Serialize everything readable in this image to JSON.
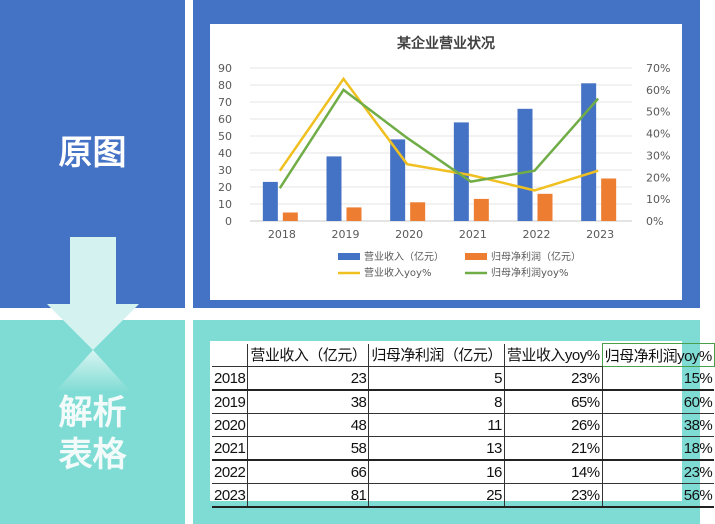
{
  "panels": {
    "original_label": "原图",
    "parsed_label": "解析\n表格"
  },
  "colors": {
    "top_panel": "#4472c4",
    "bottom_panel": "#7fdcd4",
    "revenue_bar": "#4472c4",
    "profit_bar": "#ed7d31",
    "revenue_yoy_line": "#f0c020",
    "profit_yoy_line": "#70ad47"
  },
  "chart_data": {
    "type": "bar",
    "title": "某企业营业状况",
    "categories": [
      "2018",
      "2019",
      "2020",
      "2021",
      "2022",
      "2023"
    ],
    "series": [
      {
        "name": "营业收入（亿元）",
        "type": "bar",
        "axis": "left",
        "values": [
          23,
          38,
          48,
          58,
          66,
          81
        ]
      },
      {
        "name": "归母净利润（亿元）",
        "type": "bar",
        "axis": "left",
        "values": [
          5,
          8,
          11,
          13,
          16,
          25
        ]
      },
      {
        "name": "营业收入yoy%",
        "type": "line",
        "axis": "right",
        "values": [
          0.23,
          0.65,
          0.26,
          0.21,
          0.14,
          0.23
        ]
      },
      {
        "name": "归母净利润yoy%",
        "type": "line",
        "axis": "right",
        "values": [
          0.15,
          0.6,
          0.38,
          0.18,
          0.23,
          0.56
        ]
      }
    ],
    "left_axis": {
      "ticks": [
        "0",
        "10",
        "20",
        "30",
        "40",
        "50",
        "60",
        "70",
        "80",
        "90"
      ],
      "ylim": [
        0,
        90
      ]
    },
    "right_axis": {
      "ticks": [
        "0%",
        "10%",
        "20%",
        "30%",
        "40%",
        "50%",
        "60%",
        "70%"
      ],
      "ylim": [
        0,
        0.7
      ]
    },
    "xlabel": "",
    "ylabel": "",
    "grid": true,
    "legend_position": "bottom"
  },
  "table": {
    "headers": [
      "",
      "营业收入（亿元）",
      "归母净利润（亿元）",
      "营业收入yoy%",
      "归母净利润yoy%"
    ],
    "rows": [
      [
        "2018",
        "23",
        "5",
        "23%",
        "15%"
      ],
      [
        "2019",
        "38",
        "8",
        "65%",
        "60%"
      ],
      [
        "2020",
        "48",
        "11",
        "26%",
        "38%"
      ],
      [
        "2021",
        "58",
        "13",
        "21%",
        "18%"
      ],
      [
        "2022",
        "66",
        "16",
        "14%",
        "23%"
      ],
      [
        "2023",
        "81",
        "25",
        "23%",
        "56%"
      ]
    ]
  }
}
